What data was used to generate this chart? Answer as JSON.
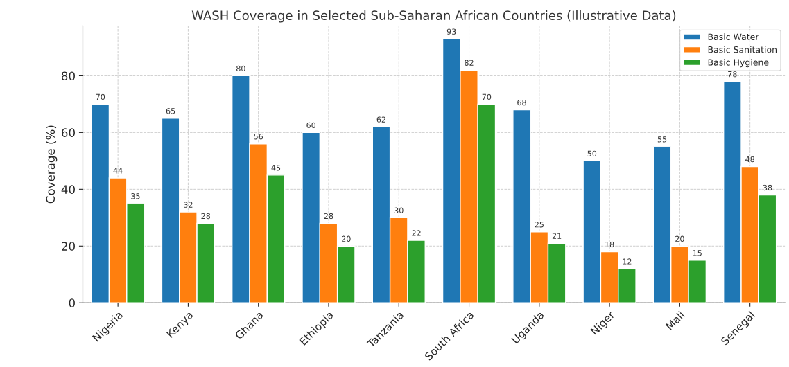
{
  "chart_data": {
    "type": "bar",
    "title": "WASH Coverage in Selected Sub-Saharan African Countries (Illustrative Data)",
    "ylabel": "Coverage (%)",
    "categories": [
      "Nigeria",
      "Kenya",
      "Ghana",
      "Ethiopia",
      "Tanzania",
      "South Africa",
      "Uganda",
      "Niger",
      "Mali",
      "Senegal"
    ],
    "series": [
      {
        "name": "Basic Water",
        "color": "#1f77b4",
        "values": [
          70,
          65,
          80,
          60,
          62,
          93,
          68,
          50,
          55,
          78
        ]
      },
      {
        "name": "Basic Sanitation",
        "color": "#ff7f0e",
        "values": [
          44,
          32,
          56,
          28,
          30,
          82,
          25,
          18,
          20,
          48
        ]
      },
      {
        "name": "Basic Hygiene",
        "color": "#2ca02c",
        "values": [
          35,
          28,
          45,
          20,
          22,
          70,
          21,
          12,
          15,
          38
        ]
      }
    ],
    "ylim": [
      0,
      97.65
    ],
    "yticks": [
      0,
      20,
      40,
      60,
      80
    ],
    "grid": true,
    "legend": "top right",
    "data_labels": true
  }
}
